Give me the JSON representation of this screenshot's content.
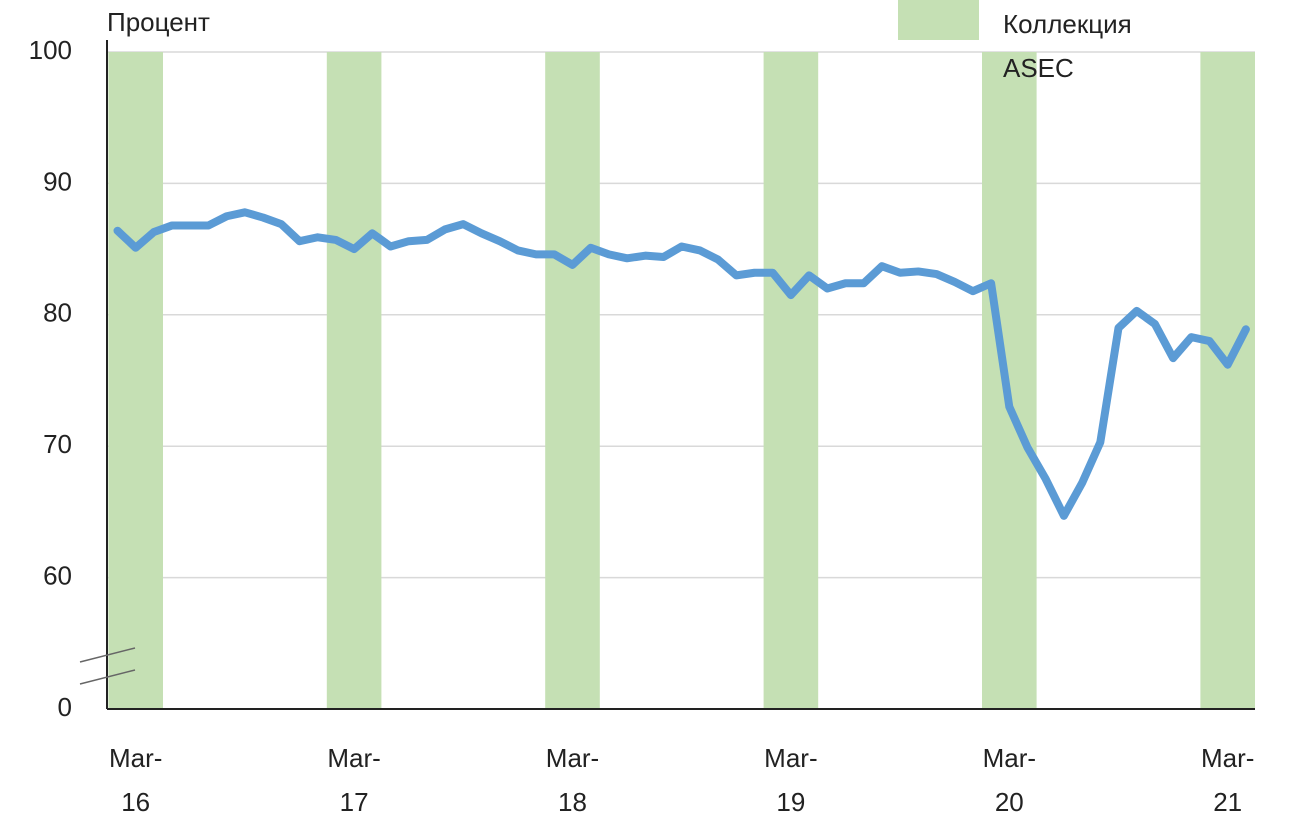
{
  "chart_data": {
    "type": "line",
    "y_label": "Процент",
    "categories": [
      null,
      "Mar-16",
      null,
      null,
      null,
      null,
      null,
      null,
      null,
      null,
      null,
      null,
      null,
      "Mar-17",
      null,
      null,
      null,
      null,
      null,
      null,
      null,
      null,
      null,
      null,
      null,
      "Mar-18",
      null,
      null,
      null,
      null,
      null,
      null,
      null,
      null,
      null,
      null,
      null,
      "Mar-19",
      null,
      null,
      null,
      null,
      null,
      null,
      null,
      null,
      null,
      null,
      null,
      "Mar-20",
      null,
      null,
      null,
      null,
      null,
      null,
      null,
      null,
      null,
      null,
      null,
      "Mar-21",
      null
    ],
    "series": [
      {
        "name": "Процент",
        "color": "#5b9bd5",
        "values": [
          86.4,
          85.1,
          86.3,
          86.8,
          86.8,
          86.8,
          87.5,
          87.8,
          87.4,
          86.9,
          85.6,
          85.9,
          85.7,
          85.0,
          86.2,
          85.2,
          85.6,
          85.7,
          86.5,
          86.9,
          86.2,
          85.6,
          84.9,
          84.6,
          84.6,
          83.8,
          85.1,
          84.6,
          84.3,
          84.5,
          84.4,
          85.2,
          84.9,
          84.2,
          83.0,
          83.2,
          83.2,
          81.5,
          83.0,
          82.0,
          82.4,
          82.4,
          83.7,
          83.2,
          83.3,
          83.1,
          82.5,
          81.8,
          82.4,
          73.0,
          69.9,
          67.5,
          64.7,
          67.2,
          70.3,
          79.0,
          80.3,
          79.3,
          76.7,
          78.3,
          78.0,
          76.2,
          78.9
        ]
      }
    ],
    "highlight": {
      "name": "Коллекция ASEC",
      "color": "#c5e0b4",
      "span": 3
    },
    "ylim": [
      0,
      100
    ],
    "axis_break": [
      0,
      60
    ],
    "yticks": [
      0,
      60,
      70,
      80,
      90,
      100
    ],
    "grid": true,
    "legend": "top-right"
  }
}
